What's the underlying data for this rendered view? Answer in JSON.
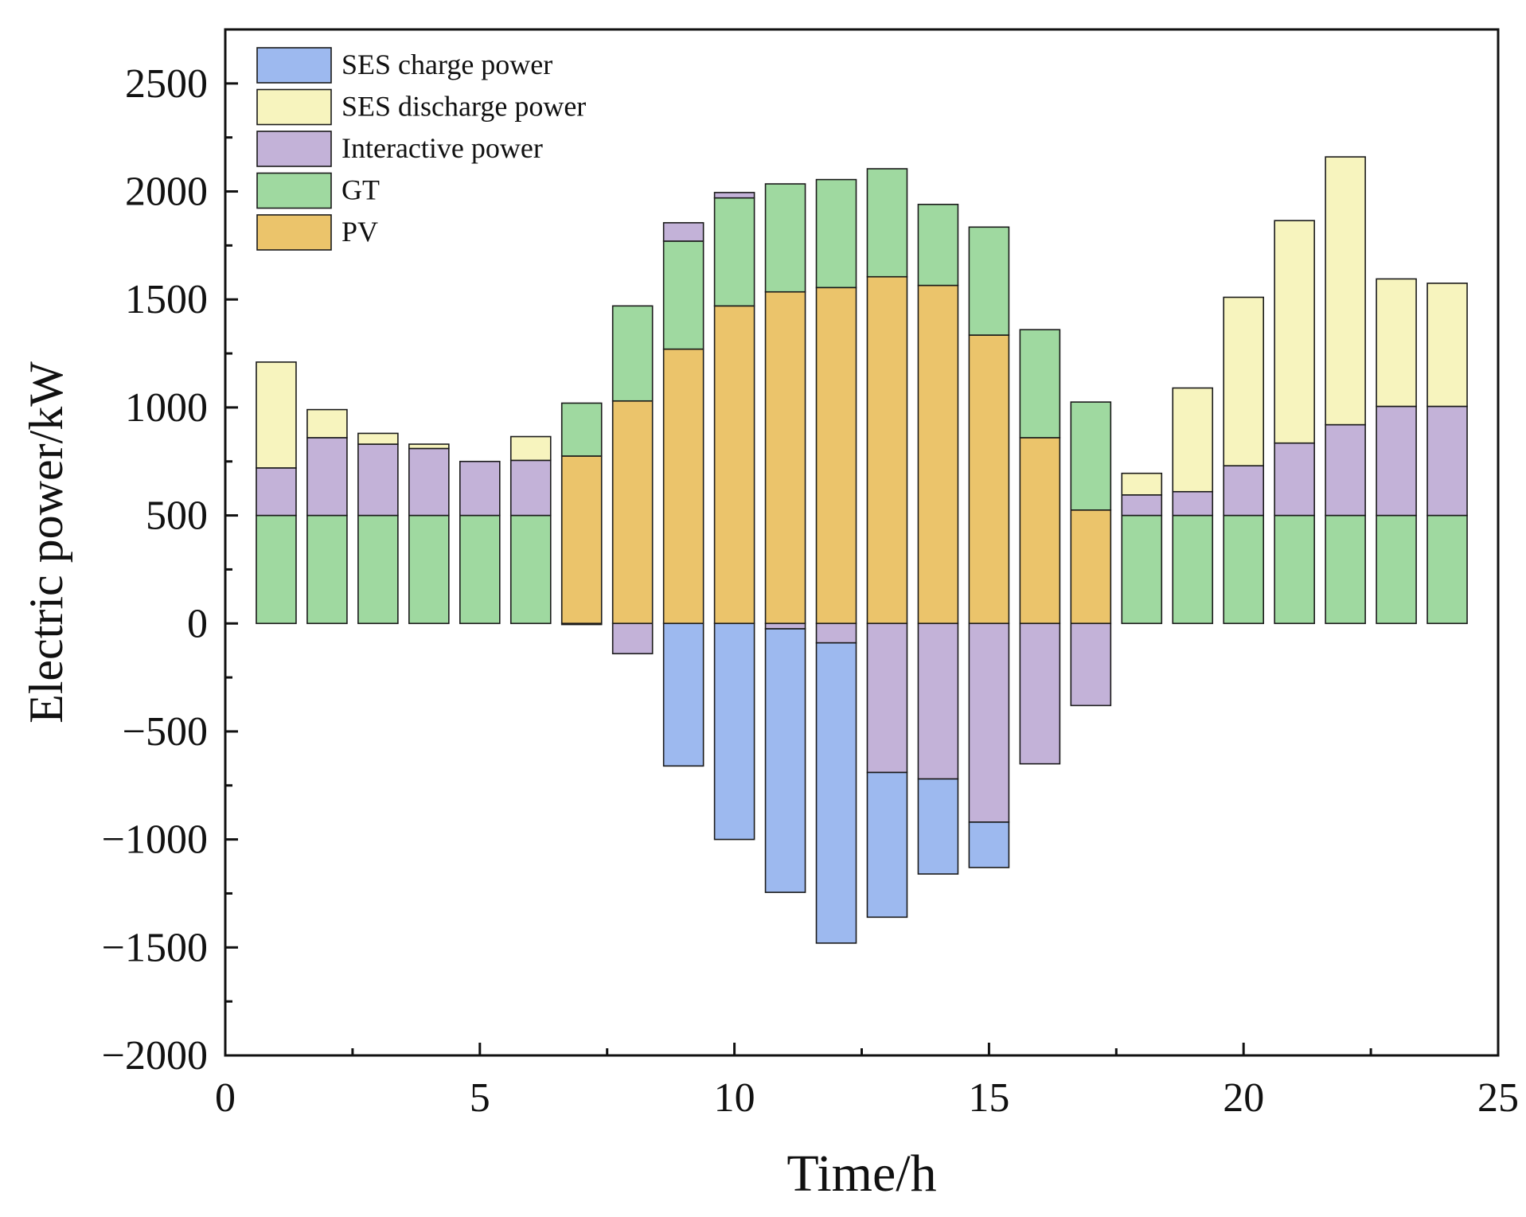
{
  "chart_data": {
    "type": "bar",
    "stacked": true,
    "xlabel": "Time/h",
    "ylabel": "Electric power/kW",
    "xlim": [
      0,
      25
    ],
    "ylim": [
      -2000,
      2750
    ],
    "xticks": [
      0,
      5,
      10,
      15,
      20,
      25
    ],
    "xticks_minor": [
      2.5,
      7.5,
      12.5,
      17.5,
      22.5
    ],
    "yticks": [
      -2000,
      -1500,
      -1000,
      -500,
      0,
      500,
      1000,
      1500,
      2000,
      2500
    ],
    "yticks_minor": [
      -1750,
      -1250,
      -750,
      -250,
      250,
      750,
      1250,
      1750,
      2250
    ],
    "ytick_labels": [
      "−2000",
      "−1500",
      "−1000",
      "−500",
      "0",
      "500",
      "1000",
      "1500",
      "2000",
      "2500"
    ],
    "legend_position": "top-left",
    "x": [
      1,
      2,
      3,
      4,
      5,
      6,
      7,
      8,
      9,
      10,
      11,
      12,
      13,
      14,
      15,
      16,
      17,
      18,
      19,
      20,
      21,
      22,
      23,
      24
    ],
    "stack_order_positive": [
      "GT_low",
      "PV",
      "GT_high",
      "Interactive power",
      "SES discharge power"
    ],
    "series": [
      {
        "name": "SES charge power",
        "color": "#9db9ef",
        "values": [
          0,
          0,
          0,
          0,
          0,
          0,
          0,
          0,
          -660,
          -1000,
          -1220,
          -1390,
          -670,
          -440,
          -210,
          0,
          0,
          0,
          0,
          0,
          0,
          0,
          0,
          0
        ]
      },
      {
        "name": "SES discharge power",
        "color": "#f7f4be",
        "values": [
          490,
          130,
          50,
          20,
          0,
          110,
          0,
          0,
          0,
          0,
          0,
          0,
          0,
          0,
          0,
          0,
          0,
          100,
          480,
          780,
          1030,
          1240,
          590,
          570
        ]
      },
      {
        "name": "Interactive power",
        "color": "#c3b2d8",
        "values": [
          220,
          360,
          330,
          310,
          250,
          255,
          -5,
          -140,
          85,
          25,
          -25,
          -90,
          -690,
          -720,
          -920,
          -650,
          -380,
          95,
          110,
          230,
          335,
          420,
          505,
          505
        ]
      },
      {
        "name": "GT",
        "color": "#9fd9a0",
        "values": [
          500,
          500,
          500,
          500,
          500,
          500,
          245,
          440,
          500,
          500,
          500,
          500,
          500,
          375,
          500,
          500,
          500,
          500,
          500,
          500,
          500,
          500,
          500,
          500
        ]
      },
      {
        "name": "PV",
        "color": "#ebc46b",
        "values": [
          0,
          0,
          0,
          0,
          0,
          0,
          775,
          1030,
          1270,
          1470,
          1535,
          1555,
          1605,
          1565,
          1335,
          860,
          525,
          0,
          0,
          0,
          0,
          0,
          0,
          0
        ]
      }
    ]
  }
}
